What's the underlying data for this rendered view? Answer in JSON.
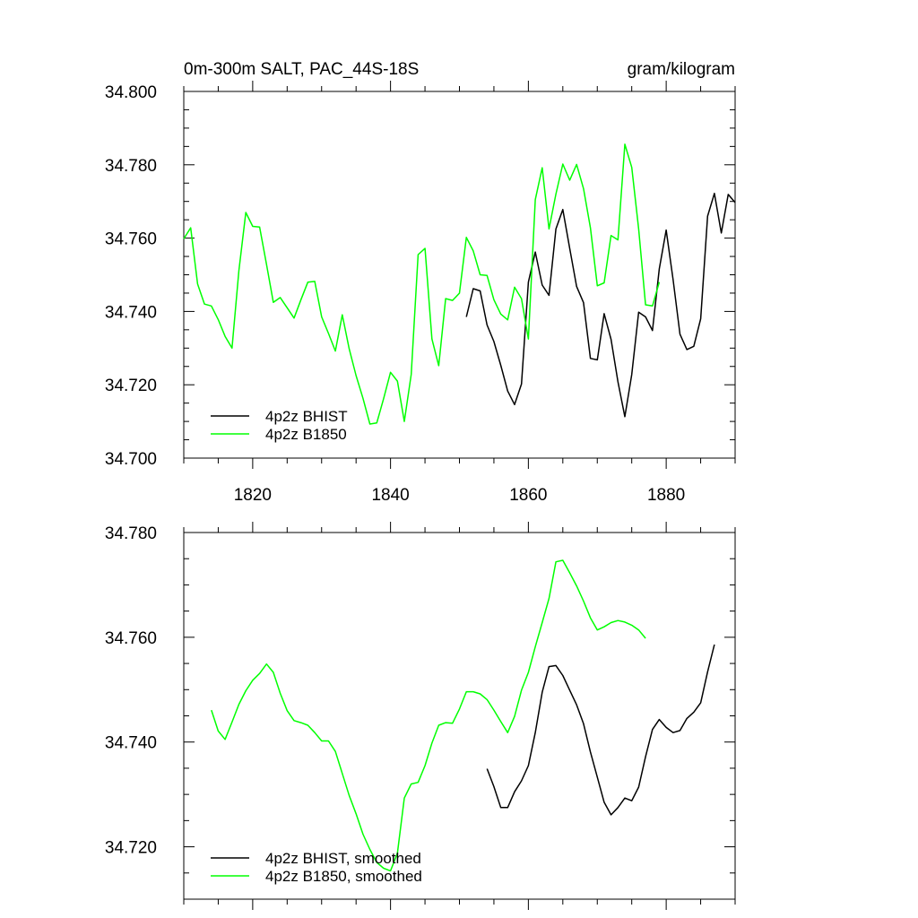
{
  "figure": {
    "title_left": "0m-300m SALT, PAC_44S-18S",
    "title_right": "gram/kilogram"
  },
  "chart_data": [
    {
      "type": "line",
      "title": "0m-300m SALT, PAC_44S-18S",
      "units": "gram/kilogram",
      "xlim": [
        1810,
        1890
      ],
      "ylim": [
        34.7,
        34.8
      ],
      "xticks": [
        1820,
        1840,
        1860,
        1880
      ],
      "xtick_labels": [
        "1820",
        "1840",
        "1860",
        "1880"
      ],
      "yticks": [
        34.7,
        34.72,
        34.74,
        34.76,
        34.78,
        34.8
      ],
      "ytick_labels": [
        "34.700",
        "34.720",
        "34.740",
        "34.760",
        "34.780",
        "34.800"
      ],
      "legend_position": "bottom-left",
      "series": [
        {
          "name": "4p2z BHIST",
          "color": "#000000",
          "x": [
            1851,
            1852,
            1853,
            1854,
            1855,
            1856,
            1857,
            1858,
            1859,
            1860,
            1861,
            1862,
            1863,
            1864,
            1865,
            1866,
            1867,
            1868,
            1869,
            1870,
            1871,
            1872,
            1873,
            1874,
            1875,
            1876,
            1877,
            1878,
            1879,
            1880,
            1881,
            1882,
            1883,
            1884,
            1885,
            1886,
            1887,
            1888,
            1889,
            1890
          ],
          "values": [
            34.7385,
            34.7462,
            34.7456,
            34.7363,
            34.7318,
            34.7253,
            34.7183,
            34.7146,
            34.7202,
            34.748,
            34.7562,
            34.7472,
            34.7444,
            34.7625,
            34.7678,
            34.7572,
            34.7468,
            34.7424,
            34.7272,
            34.7268,
            34.7394,
            34.7324,
            34.7208,
            34.7113,
            34.7228,
            34.7398,
            34.7385,
            34.7348,
            34.7516,
            34.7622,
            34.7487,
            34.7338,
            34.7296,
            34.7305,
            34.738,
            34.766,
            34.7722,
            34.7614,
            34.7719,
            34.7697
          ]
        },
        {
          "name": "4p2z B1850",
          "color": "#00ff00",
          "x": [
            1810,
            1811,
            1812,
            1813,
            1814,
            1815,
            1816,
            1817,
            1818,
            1819,
            1820,
            1821,
            1822,
            1823,
            1824,
            1825,
            1826,
            1827,
            1828,
            1829,
            1830,
            1831,
            1832,
            1833,
            1834,
            1835,
            1836,
            1837,
            1838,
            1839,
            1840,
            1841,
            1842,
            1843,
            1844,
            1845,
            1846,
            1847,
            1848,
            1849,
            1850,
            1851,
            1852,
            1853,
            1854,
            1855,
            1856,
            1857,
            1858,
            1859,
            1860,
            1861,
            1862,
            1863,
            1864,
            1865,
            1866,
            1867,
            1868,
            1869,
            1870,
            1871,
            1872,
            1873,
            1874,
            1875,
            1876,
            1877,
            1878,
            1879
          ],
          "values": [
            34.7598,
            34.7628,
            34.7475,
            34.742,
            34.7415,
            34.7378,
            34.7332,
            34.73,
            34.7512,
            34.767,
            34.7632,
            34.763,
            34.7528,
            34.7425,
            34.7438,
            34.741,
            34.7382,
            34.7432,
            34.748,
            34.7482,
            34.7385,
            34.734,
            34.7292,
            34.7391,
            34.7298,
            34.7225,
            34.7163,
            34.7093,
            34.7096,
            34.7162,
            34.7234,
            34.721,
            34.71,
            34.7228,
            34.7555,
            34.7572,
            34.7325,
            34.7252,
            34.7435,
            34.743,
            34.745,
            34.7602,
            34.7565,
            34.75,
            34.7498,
            34.7432,
            34.7393,
            34.7377,
            34.7466,
            34.7435,
            34.7325,
            34.7705,
            34.7792,
            34.7625,
            34.772,
            34.7802,
            34.7758,
            34.7801,
            34.7735,
            34.7628,
            34.747,
            34.7478,
            34.7607,
            34.7595,
            34.7856,
            34.7793,
            34.7625,
            34.7418,
            34.7415,
            34.748
          ]
        }
      ]
    },
    {
      "type": "line",
      "title": "",
      "xlim": [
        1810,
        1890
      ],
      "ylim": [
        34.71,
        34.78
      ],
      "xticks": [
        1820,
        1840,
        1860,
        1880
      ],
      "yticks": [
        34.72,
        34.74,
        34.76,
        34.78
      ],
      "ytick_labels": [
        "34.720",
        "34.740",
        "34.760",
        "34.780"
      ],
      "legend_position": "bottom-left",
      "series": [
        {
          "name": "4p2z BHIST, smoothed",
          "color": "#000000",
          "x": [
            1854,
            1855,
            1856,
            1857,
            1858,
            1859,
            1860,
            1861,
            1862,
            1863,
            1864,
            1865,
            1866,
            1867,
            1868,
            1869,
            1870,
            1871,
            1872,
            1873,
            1874,
            1875,
            1876,
            1877,
            1878,
            1879,
            1880,
            1881,
            1882,
            1883,
            1884,
            1885,
            1886,
            1887
          ],
          "values": [
            34.7349,
            34.7315,
            34.7275,
            34.7275,
            34.7305,
            34.7326,
            34.7355,
            34.7418,
            34.7495,
            34.7544,
            34.7546,
            34.7527,
            34.7499,
            34.7471,
            34.7435,
            34.7381,
            34.7333,
            34.7285,
            34.7261,
            34.7275,
            34.7293,
            34.7288,
            34.7314,
            34.7372,
            34.7424,
            34.7443,
            34.7428,
            34.7418,
            34.7422,
            34.7445,
            34.7457,
            34.7475,
            34.7534,
            34.7586
          ]
        },
        {
          "name": "4p2z B1850, smoothed",
          "color": "#00ff00",
          "x": [
            1814,
            1815,
            1816,
            1817,
            1818,
            1819,
            1820,
            1821,
            1822,
            1823,
            1824,
            1825,
            1826,
            1827,
            1828,
            1829,
            1830,
            1831,
            1832,
            1833,
            1834,
            1835,
            1836,
            1837,
            1838,
            1839,
            1840,
            1841,
            1842,
            1843,
            1844,
            1845,
            1846,
            1847,
            1848,
            1849,
            1850,
            1851,
            1852,
            1853,
            1854,
            1855,
            1856,
            1857,
            1858,
            1859,
            1860,
            1861,
            1862,
            1863,
            1864,
            1865,
            1866,
            1867,
            1868,
            1869,
            1870,
            1871,
            1872,
            1873,
            1874,
            1875,
            1876,
            1877
          ],
          "values": [
            34.7461,
            34.7421,
            34.7405,
            34.7438,
            34.7472,
            34.7498,
            34.7518,
            34.7531,
            34.7549,
            34.7533,
            34.7493,
            34.746,
            34.7441,
            34.7437,
            34.7432,
            34.7418,
            34.7402,
            34.7402,
            34.7382,
            34.734,
            34.7298,
            34.7263,
            34.7224,
            34.7195,
            34.717,
            34.7159,
            34.7154,
            34.7188,
            34.7293,
            34.732,
            34.7323,
            34.7355,
            34.7398,
            34.7432,
            34.7437,
            34.7436,
            34.7463,
            34.7496,
            34.7496,
            34.7492,
            34.7481,
            34.7461,
            34.7439,
            34.7418,
            34.7449,
            34.7499,
            34.7533,
            34.7582,
            34.7628,
            34.7674,
            34.7744,
            34.7747,
            34.7723,
            34.7698,
            34.7669,
            34.7637,
            34.7614,
            34.762,
            34.7628,
            34.7632,
            34.7629,
            34.7623,
            34.7614,
            34.7598
          ]
        }
      ]
    }
  ]
}
